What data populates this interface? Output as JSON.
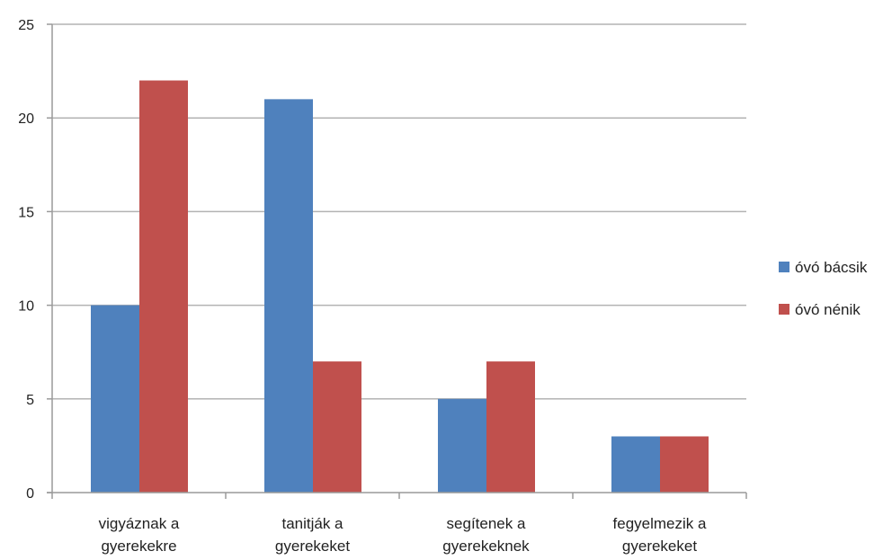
{
  "chart_data": {
    "type": "bar",
    "categories": [
      [
        "vigyáznak a",
        "gyerekekre"
      ],
      [
        "tanitják a",
        "gyerekeket"
      ],
      [
        "segítenek a",
        "gyerekeknek"
      ],
      [
        "fegyelmezik a",
        "gyerekeket"
      ]
    ],
    "series": [
      {
        "name": "óvó bácsik",
        "color": "#4f81bd",
        "values": [
          10,
          21,
          5,
          3
        ]
      },
      {
        "name": "óvó nénik",
        "color": "#c0504d",
        "values": [
          22,
          7,
          7,
          3
        ]
      }
    ],
    "ylim": [
      0,
      25
    ],
    "yticks": [
      0,
      5,
      10,
      15,
      20,
      25
    ],
    "grid": true,
    "legend_position": "right"
  }
}
